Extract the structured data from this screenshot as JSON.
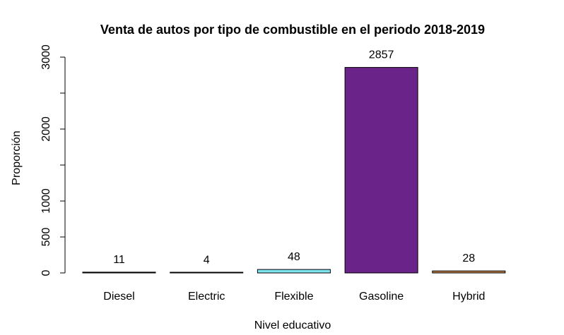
{
  "chart_data": {
    "type": "bar",
    "title": "Venta de autos por tipo de combustible en el periodo 2018-2019",
    "xlabel": "Nivel educativo",
    "ylabel": "Proporción",
    "categories": [
      "Diesel",
      "Electric",
      "Flexible",
      "Gasoline",
      "Hybrid"
    ],
    "values": [
      11,
      4,
      48,
      2857,
      28
    ],
    "data_labels": [
      "11",
      "4",
      "48",
      "2857",
      "28"
    ],
    "colors": [
      "#1a1a1a",
      "#3a3a3a",
      "#7fe5f0",
      "#6a2388",
      "#c0804a"
    ],
    "yticks": [
      0,
      500,
      1000,
      2000,
      3000
    ],
    "ytick_labels": [
      "0",
      "500",
      "1000",
      "2000",
      "3000"
    ],
    "ylim": [
      0,
      3000
    ],
    "grid": false,
    "legend": "none"
  }
}
